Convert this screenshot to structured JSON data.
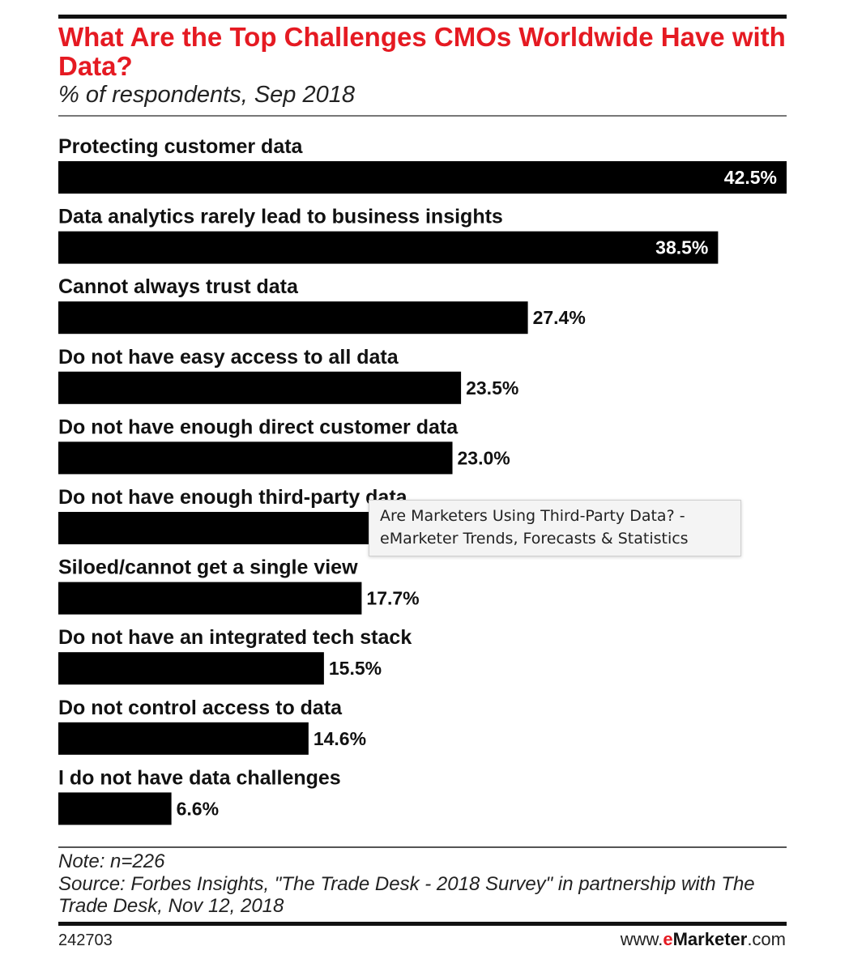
{
  "header": {
    "title": "What Are the Top Challenges CMOs Worldwide Have with Data?",
    "subtitle": "% of respondents, Sep 2018"
  },
  "chart_data": {
    "type": "bar",
    "orientation": "horizontal",
    "categories": [
      "Protecting customer data",
      "Data analytics rarely lead to business insights",
      "Cannot always trust data",
      "Do not have easy access to all data",
      "Do not have enough direct customer data",
      "Do not have enough third-party data",
      "Siloed/cannot get a single view",
      "Do not have an integrated tech stack",
      "Do not control access to data",
      "I do not have data challenges"
    ],
    "values": [
      42.5,
      38.5,
      27.4,
      23.5,
      23.0,
      null,
      17.7,
      15.5,
      14.6,
      6.6
    ],
    "value_labels": [
      "42.5%",
      "38.5%",
      "27.4%",
      "23.5%",
      "23.0%",
      "",
      "17.7%",
      "15.5%",
      "14.6%",
      "6.6%"
    ],
    "xlim": [
      0,
      42.5
    ],
    "bar_color": "#000000",
    "grid": false,
    "legend": "none"
  },
  "tooltip": {
    "line1": "Are Marketers Using Third-Party Data? -",
    "line2": "eMarketer Trends, Forecasts & Statistics"
  },
  "footer": {
    "note": "Note: n=226",
    "source": "Source: Forbes Insights, \"The Trade Desk - 2018 Survey\" in partnership with The Trade Desk, Nov 12, 2018",
    "chart_id": "242703",
    "brand_prefix": "www.",
    "brand_e": "e",
    "brand_main": "Marketer",
    "brand_suffix": ".com"
  },
  "colors": {
    "title": "#e51a22",
    "bar": "#000000",
    "value_inside": "#ffffff",
    "value_outside": "#111111"
  }
}
